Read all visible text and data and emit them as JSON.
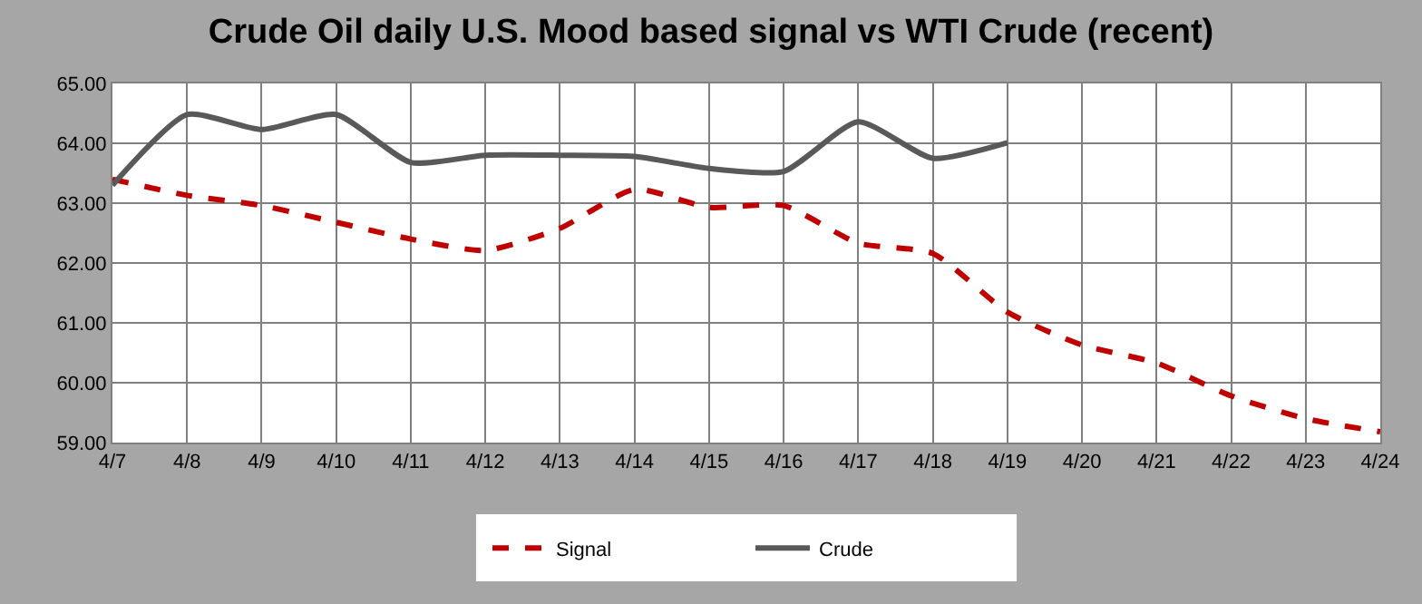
{
  "chart_data": {
    "type": "line",
    "title": "Crude Oil daily U.S. Mood based signal vs WTI Crude (recent)",
    "categories": [
      "4/7",
      "4/8",
      "4/9",
      "4/10",
      "4/11",
      "4/12",
      "4/13",
      "4/14",
      "4/15",
      "4/16",
      "4/17",
      "4/18",
      "4/19",
      "4/20",
      "4/21",
      "4/22",
      "4/23",
      "4/24"
    ],
    "series": [
      {
        "name": "Signal",
        "color": "#c00000",
        "line_style": "dashed",
        "values": [
          63.4,
          63.13,
          62.96,
          62.68,
          62.4,
          62.21,
          62.58,
          63.23,
          62.93,
          62.96,
          62.33,
          62.16,
          61.18,
          60.63,
          60.33,
          59.78,
          59.4,
          59.18
        ]
      },
      {
        "name": "Crude",
        "color": "#595959",
        "line_style": "solid",
        "values": [
          63.3,
          64.48,
          64.23,
          64.48,
          63.68,
          63.8,
          63.8,
          63.78,
          63.58,
          63.53,
          64.36,
          63.75,
          64.01,
          null,
          null,
          null,
          null,
          null
        ]
      }
    ],
    "ylim": [
      59,
      65
    ],
    "yticks": [
      {
        "value": 59,
        "label": "59.00"
      },
      {
        "value": 60,
        "label": "60.00"
      },
      {
        "value": 61,
        "label": "61.00"
      },
      {
        "value": 62,
        "label": "62.00"
      },
      {
        "value": 63,
        "label": "63.00"
      },
      {
        "value": 64,
        "label": "64.00"
      },
      {
        "value": 65,
        "label": "65.00"
      }
    ],
    "grid": true,
    "legend": "bottom",
    "marker": "none"
  }
}
